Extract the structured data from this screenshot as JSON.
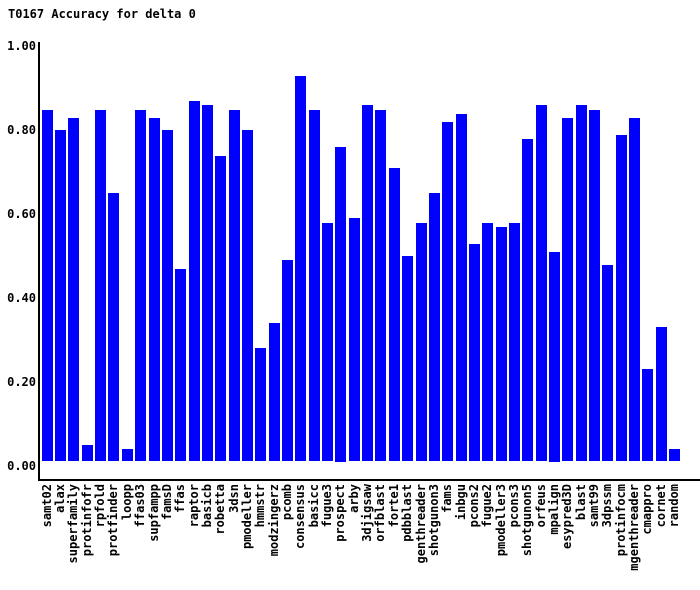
{
  "chart_data": {
    "type": "bar",
    "title": "T0167 Accuracy for delta 0",
    "xlabel": "",
    "ylabel": "",
    "ylim": [
      0.0,
      1.0
    ],
    "grid": false,
    "legend": "none",
    "x_tick_rotation": "vertical-bottom-to-top",
    "ytick_labels": [
      "1.00",
      "0.80",
      "0.60",
      "0.40",
      "0.20",
      "0.00"
    ],
    "ytick_values": [
      1.0,
      0.8,
      0.6,
      0.4,
      0.2,
      0.0
    ],
    "categories": [
      "samt02",
      "alax",
      "superfamily",
      "protinfofr",
      "rpfold",
      "protfinder",
      "loopp",
      "ffas03",
      "supfampp",
      "famsD",
      "ffas",
      "raptor",
      "basicb",
      "robetta",
      "3dsn",
      "pmodeller",
      "hmmstr",
      "modzingerz",
      "pcomb",
      "consensus",
      "basicc",
      "fugue3",
      "prospect",
      "arby",
      "3djigsaw",
      "orfblast",
      "forte1",
      "pdbblast",
      "genthreader",
      "shotgunon3",
      "fams",
      "inbgu",
      "pcons2",
      "fugue2",
      "pmodeller3",
      "pcons3",
      "shotgunon5",
      "orfeus",
      "mpalign",
      "esypred3D",
      "blast",
      "samt99",
      "3dpssm",
      "protinfocm",
      "mgenthreader",
      "cmappro",
      "cornet",
      "random"
    ],
    "values": [
      0.84,
      0.79,
      0.82,
      0.04,
      0.84,
      0.64,
      0.03,
      0.84,
      0.82,
      0.79,
      0.46,
      0.86,
      0.85,
      0.73,
      0.84,
      0.79,
      0.27,
      0.33,
      0.48,
      0.92,
      0.84,
      0.57,
      0.75,
      0.58,
      0.85,
      0.84,
      0.7,
      0.49,
      0.57,
      0.64,
      0.81,
      0.83,
      0.52,
      0.57,
      0.56,
      0.57,
      0.77,
      0.85,
      0.5,
      0.82,
      0.85,
      0.84,
      0.47,
      0.78,
      0.82,
      0.22,
      0.32,
      0.03
    ]
  },
  "colors": {
    "background": "#ffffff",
    "bar": "#0000ff",
    "axis": "#000000",
    "text": "#000000"
  }
}
